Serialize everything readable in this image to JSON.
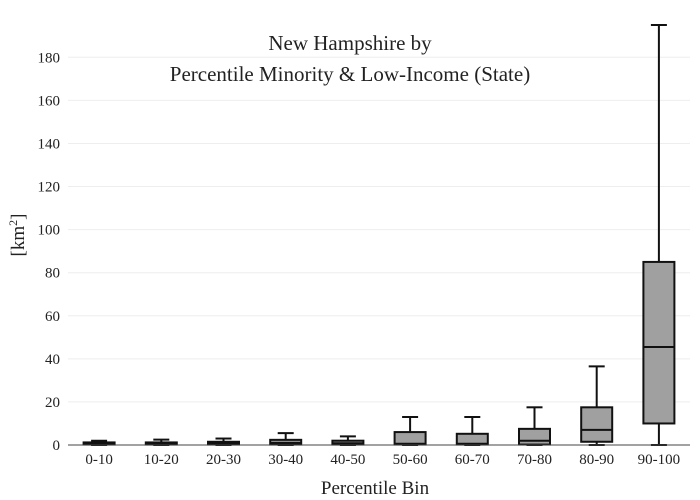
{
  "chart_data": {
    "type": "box",
    "title_lines": [
      "New Hampshire  by",
      "Percentile Minority & Low-Income (State)"
    ],
    "xlabel": "Percentile Bin",
    "ylabel": "[km",
    "ylabel_sup": "2",
    "ylabel_close": "]",
    "ylim": [
      0,
      195
    ],
    "yticks": [
      0,
      20,
      40,
      60,
      80,
      100,
      120,
      140,
      160,
      180
    ],
    "grid": true,
    "box_color": "#a0a0a0",
    "line_color": "#111111",
    "categories": [
      "0-10",
      "10-20",
      "20-30",
      "30-40",
      "40-50",
      "50-60",
      "60-70",
      "70-80",
      "80-90",
      "90-100"
    ],
    "boxes": [
      {
        "min": 0,
        "q1": 0.2,
        "median": 0.6,
        "q3": 1.2,
        "max": 2.0
      },
      {
        "min": 0,
        "q1": 0.2,
        "median": 0.5,
        "q3": 1.2,
        "max": 2.5
      },
      {
        "min": 0,
        "q1": 0.2,
        "median": 0.8,
        "q3": 1.5,
        "max": 3.0
      },
      {
        "min": 0,
        "q1": 0.2,
        "median": 1.0,
        "q3": 2.4,
        "max": 5.5
      },
      {
        "min": 0,
        "q1": 0.2,
        "median": 0.8,
        "q3": 2.0,
        "max": 4.0
      },
      {
        "min": 0,
        "q1": 0.2,
        "median": 0.6,
        "q3": 6.0,
        "max": 13.0
      },
      {
        "min": 0,
        "q1": 0.2,
        "median": 0.6,
        "q3": 5.2,
        "max": 13.0
      },
      {
        "min": 0,
        "q1": 0.2,
        "median": 2.0,
        "q3": 7.5,
        "max": 17.5
      },
      {
        "min": 0,
        "q1": 1.5,
        "median": 7.0,
        "q3": 17.5,
        "max": 36.5
      },
      {
        "min": 0,
        "q1": 10.0,
        "median": 45.5,
        "q3": 85.0,
        "max": 195.0
      }
    ]
  }
}
